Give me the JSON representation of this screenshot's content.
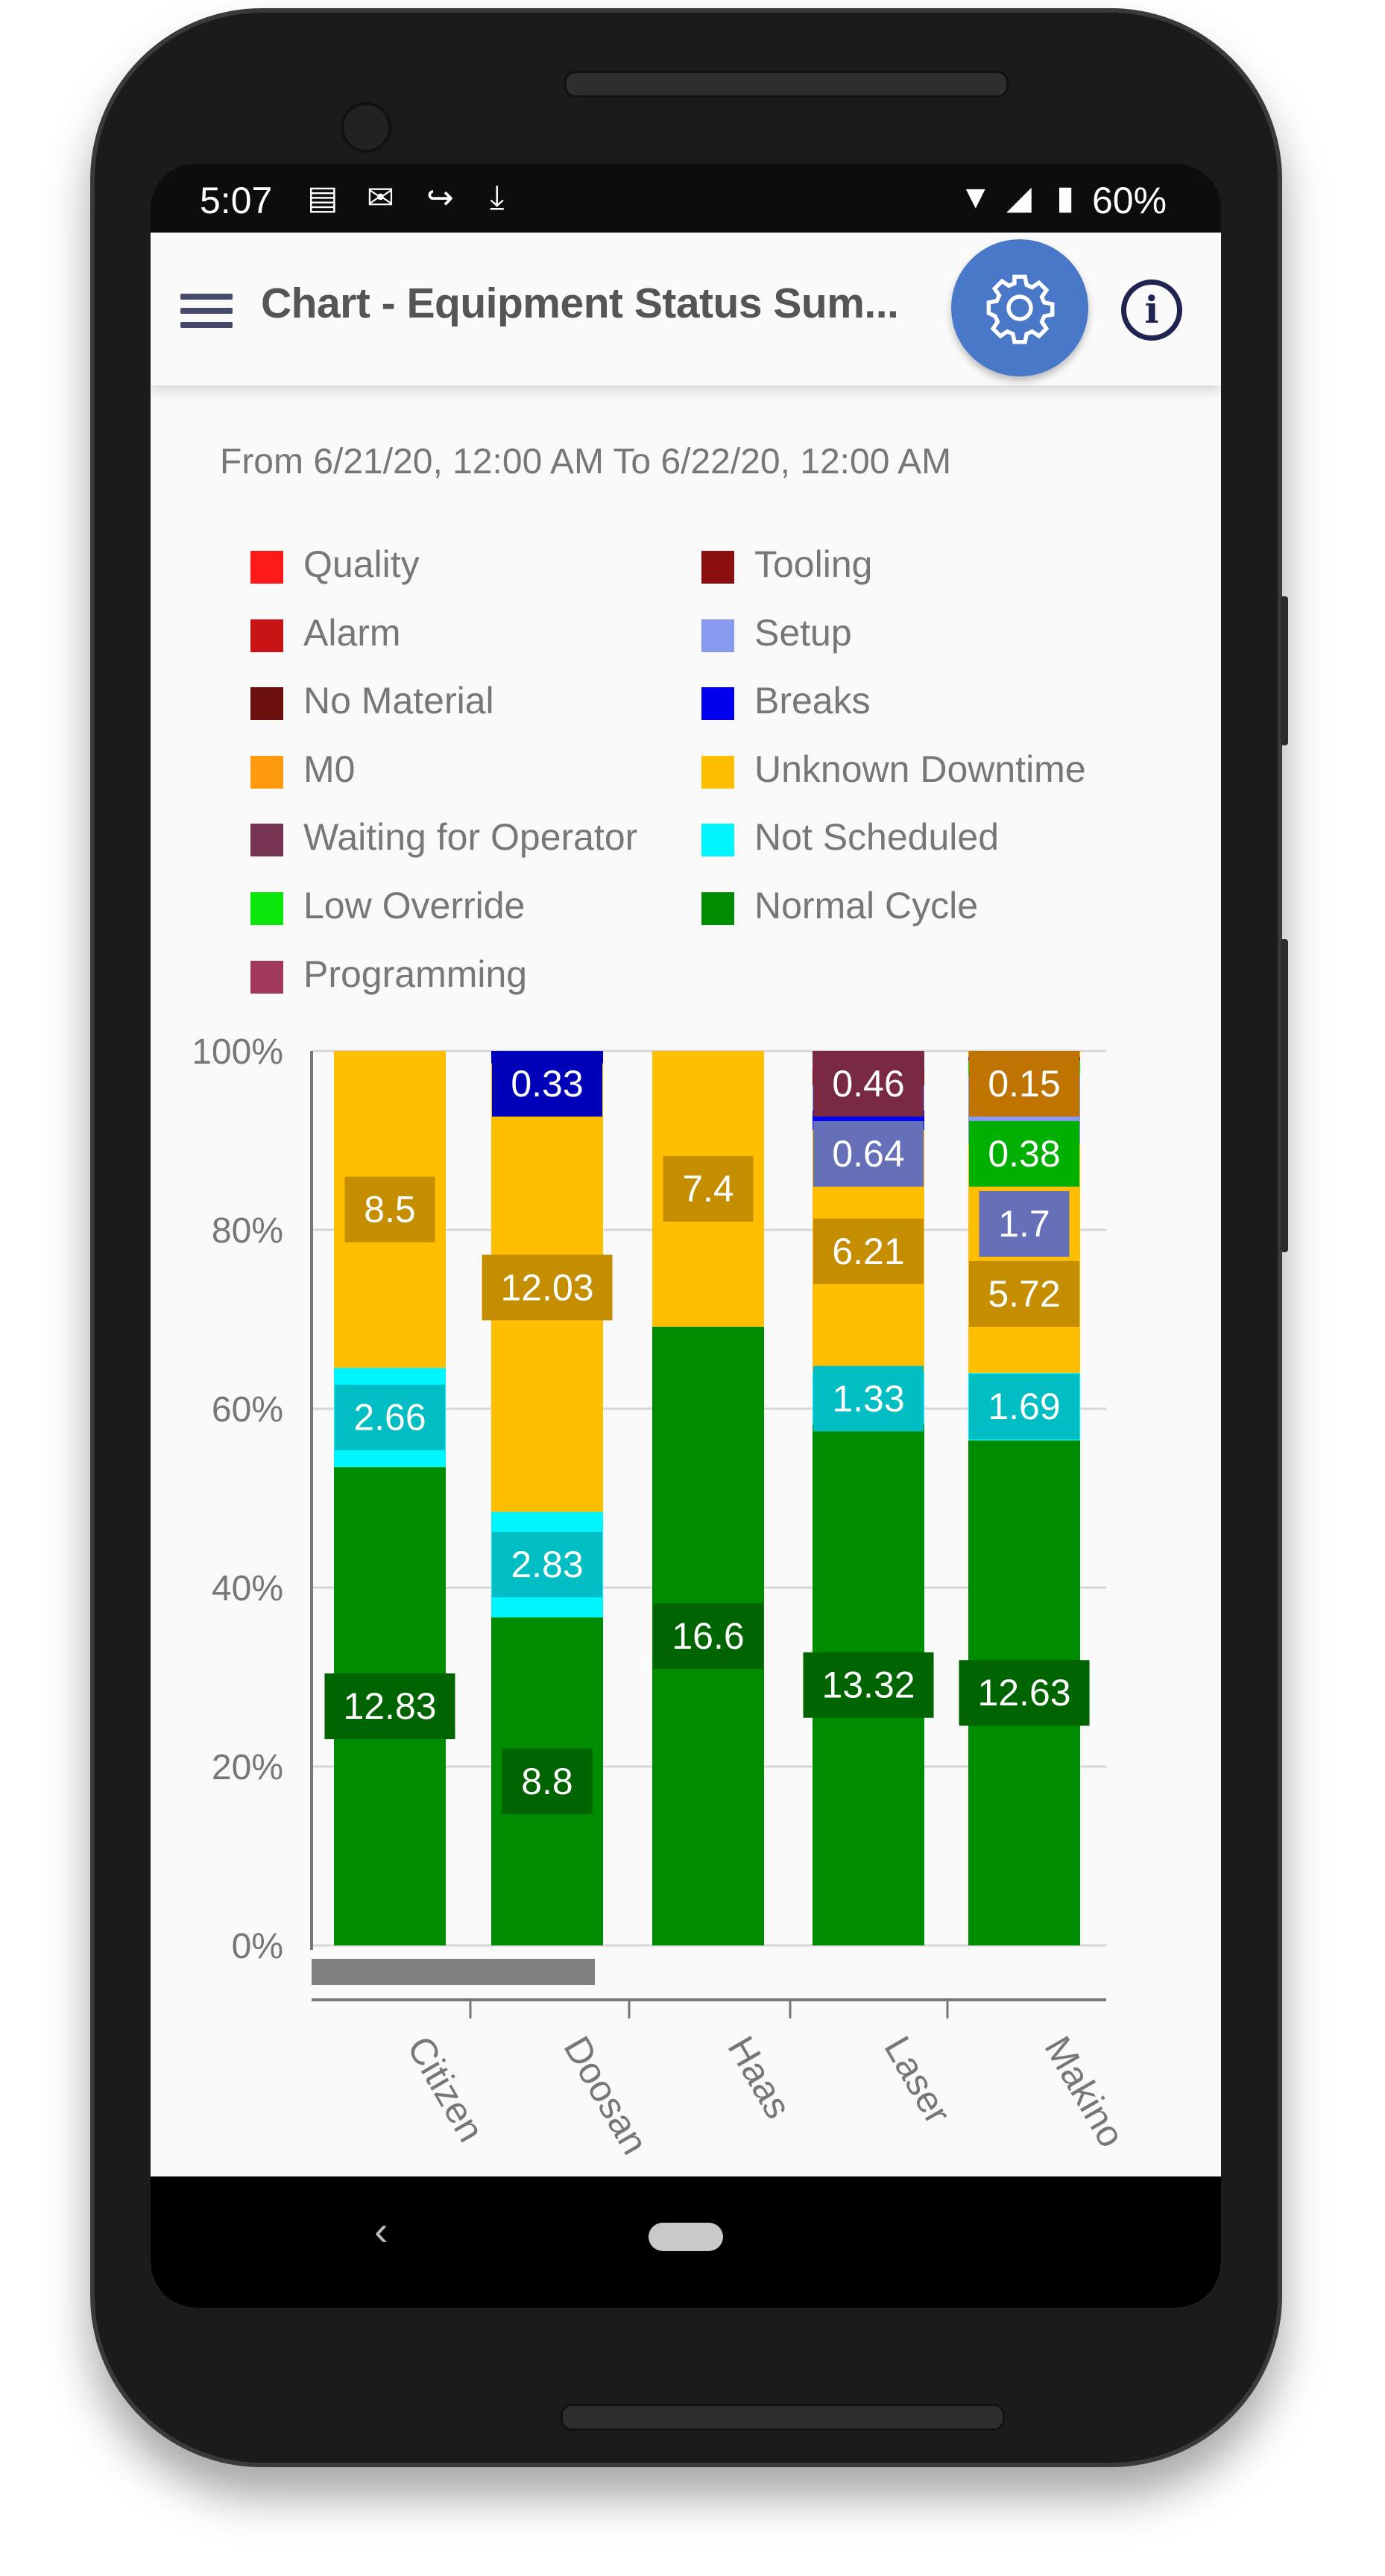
{
  "status_bar": {
    "time": "5:07",
    "battery": "60%",
    "icons": [
      "news-icon",
      "mail-icon",
      "route-icon",
      "download-icon",
      "wifi-icon",
      "signal-icon",
      "battery-icon"
    ]
  },
  "app_bar": {
    "title": "Chart - Equipment Status Sum...",
    "menu_icon": "hamburger-icon",
    "settings_icon": "gear-icon",
    "info_icon": "info-icon",
    "accent": "#4a78c8"
  },
  "date_range": "From 6/21/20, 12:00 AM To 6/22/20, 12:00 AM",
  "chart_data": {
    "type": "bar",
    "stacked": true,
    "normalized_percent": true,
    "categories": [
      "Citizen",
      "Doosan",
      "Haas",
      "Laser",
      "Makino"
    ],
    "y_ticks": [
      "0%",
      "20%",
      "40%",
      "60%",
      "80%",
      "100%"
    ],
    "ylim": [
      0,
      100
    ],
    "grid": true,
    "legend_position": "top",
    "series": [
      {
        "name": "Quality",
        "color": "#ff1a1a",
        "values": [
          0,
          0,
          0,
          0,
          0
        ],
        "labels": [
          null,
          null,
          null,
          null,
          null
        ]
      },
      {
        "name": "Tooling",
        "color": "#8b0e0e",
        "values": [
          0,
          0,
          0,
          0,
          0
        ],
        "labels": [
          null,
          null,
          null,
          null,
          null
        ]
      },
      {
        "name": "Alarm",
        "color": "#c81414",
        "values": [
          0,
          0,
          0,
          0,
          0
        ],
        "labels": [
          null,
          null,
          null,
          null,
          null
        ]
      },
      {
        "name": "Setup",
        "color": "#8899f0",
        "label_color": "#6670b8",
        "values": [
          0,
          0,
          0,
          0.64,
          1.7
        ],
        "labels": [
          null,
          null,
          null,
          "0.64",
          "1.7"
        ]
      },
      {
        "name": "No Material",
        "color": "#6b0e0e",
        "values": [
          0,
          0,
          0,
          0.42,
          0
        ],
        "labels": [
          null,
          null,
          null,
          null,
          null
        ]
      },
      {
        "name": "Breaks",
        "color": "#0000ee",
        "label_color": "#0000b8",
        "values": [
          0,
          0.33,
          0,
          0.5,
          0
        ],
        "labels": [
          null,
          "0.33",
          null,
          null,
          null
        ]
      },
      {
        "name": "M0",
        "color": "#ff9a10",
        "label_color": "#bf7300",
        "values": [
          0,
          0,
          0,
          0,
          0.15
        ],
        "labels": [
          null,
          null,
          null,
          null,
          "0.15"
        ]
      },
      {
        "name": "Unknown Downtime",
        "color": "#ffbf00",
        "label_color": "#c48e00",
        "values": [
          8.5,
          12.03,
          7.4,
          6.21,
          5.72
        ],
        "labels": [
          "8.5",
          "12.03",
          "7.4",
          "6.21",
          "5.72"
        ]
      },
      {
        "name": "Waiting for Operator",
        "color": "#773352",
        "label_color": "#792943",
        "values": [
          0,
          0,
          0,
          0.46,
          0.1
        ],
        "labels": [
          null,
          null,
          null,
          "0.46",
          null
        ]
      },
      {
        "name": "Not Scheduled",
        "color": "#00f6ff",
        "label_color": "#00bec4",
        "values": [
          2.66,
          2.83,
          0,
          1.33,
          1.69
        ],
        "labels": [
          "2.66",
          "2.83",
          null,
          "1.33",
          "1.69"
        ]
      },
      {
        "name": "Low Override",
        "color": "#0be60b",
        "label_color": "#00b000",
        "values": [
          0,
          0,
          0,
          0,
          0.38
        ],
        "labels": [
          null,
          null,
          null,
          null,
          "0.38"
        ]
      },
      {
        "name": "Normal Cycle",
        "color": "#008c00",
        "label_color": "#006400",
        "values": [
          12.83,
          8.8,
          16.6,
          13.32,
          12.63
        ],
        "labels": [
          "12.83",
          "8.8",
          "16.6",
          "13.32",
          "12.63"
        ]
      },
      {
        "name": "Programming",
        "color": "#a0395b",
        "values": [
          0,
          0,
          0,
          0,
          0
        ],
        "labels": [
          null,
          null,
          null,
          null,
          null
        ]
      }
    ]
  }
}
